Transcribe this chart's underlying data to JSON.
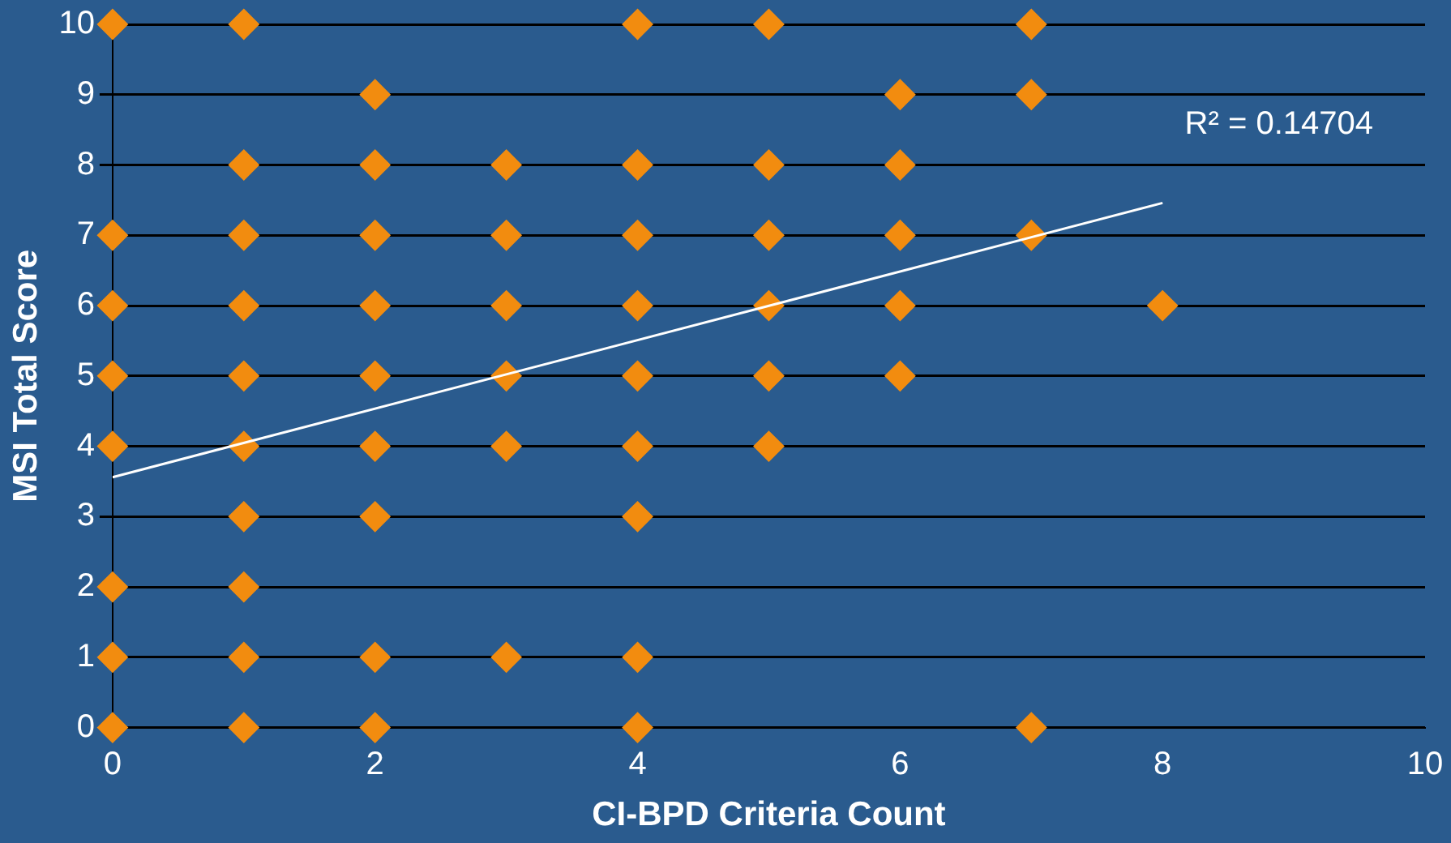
{
  "chart_data": {
    "type": "scatter",
    "xlabel": "CI-BPD Criteria Count",
    "ylabel": "MSI Total Score",
    "annotations": [
      "R² = 0.14704"
    ],
    "series": [
      {
        "color": "#f28c0f",
        "marker": "diamond",
        "x": [
          0,
          1,
          4,
          5,
          7,
          2,
          6,
          7,
          1,
          2,
          3,
          4,
          5,
          6,
          0,
          1,
          2,
          3,
          4,
          5,
          6,
          7,
          0,
          1,
          2,
          3,
          4,
          5,
          6,
          8,
          0,
          1,
          2,
          3,
          4,
          5,
          6,
          0,
          1,
          2,
          3,
          4,
          5,
          1,
          2,
          4,
          0,
          1,
          0,
          1,
          2,
          3,
          4,
          0,
          1,
          2,
          4,
          7
        ],
        "values": [
          10,
          10,
          10,
          10,
          10,
          9,
          9,
          9,
          8,
          8,
          8,
          8,
          8,
          8,
          7,
          7,
          7,
          7,
          7,
          7,
          7,
          7,
          6,
          6,
          6,
          6,
          6,
          6,
          6,
          6,
          5,
          5,
          5,
          5,
          5,
          5,
          5,
          4,
          4,
          4,
          4,
          4,
          4,
          3,
          3,
          3,
          2,
          2,
          1,
          1,
          1,
          1,
          1,
          0,
          0,
          0,
          0,
          0
        ]
      },
      {
        "type": "line",
        "marker": "none",
        "color": "#ffffff",
        "x": [
          0,
          8
        ],
        "values": [
          3.56,
          7.46
        ]
      }
    ],
    "xlim": [
      0,
      10
    ],
    "xticks": [
      0,
      2,
      4,
      6,
      8,
      10
    ],
    "ylim": [
      0,
      10
    ],
    "yticks": [
      0,
      1,
      2,
      3,
      4,
      5,
      6,
      7,
      8,
      9,
      10
    ],
    "grid": "y",
    "legend": false
  }
}
